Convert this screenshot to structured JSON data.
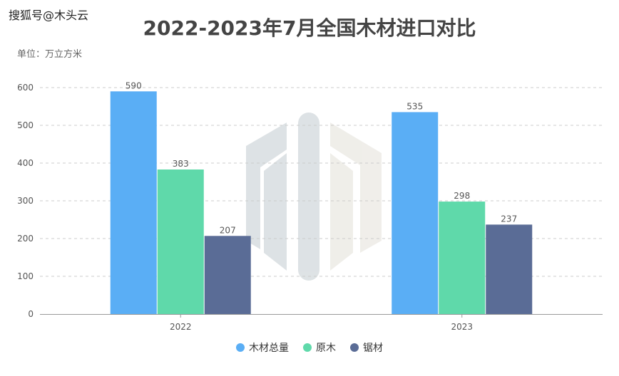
{
  "watermark": "搜狐号@木头云",
  "chart_data": {
    "type": "bar",
    "title": "2022-2023年7月全国木材进口对比",
    "unit_label": "单位：万立方米",
    "categories": [
      "2022",
      "2023"
    ],
    "series": [
      {
        "name": "木材总量",
        "values": [
          590,
          535
        ],
        "color": "#5aaef5"
      },
      {
        "name": "原木",
        "values": [
          383,
          298
        ],
        "color": "#5fd9aa"
      },
      {
        "name": "锯材",
        "values": [
          207,
          237
        ],
        "color": "#5a6c96"
      }
    ],
    "ylim": [
      0,
      600
    ],
    "yticks": [
      "0",
      "100",
      "200",
      "300",
      "400",
      "500",
      "600"
    ],
    "grid": true,
    "legend_position": "bottom-center",
    "data_labels": true
  },
  "colors": {
    "grid": "#cccccc",
    "axis": "#999999",
    "tick_text": "#555555",
    "label_text": "#555555"
  }
}
